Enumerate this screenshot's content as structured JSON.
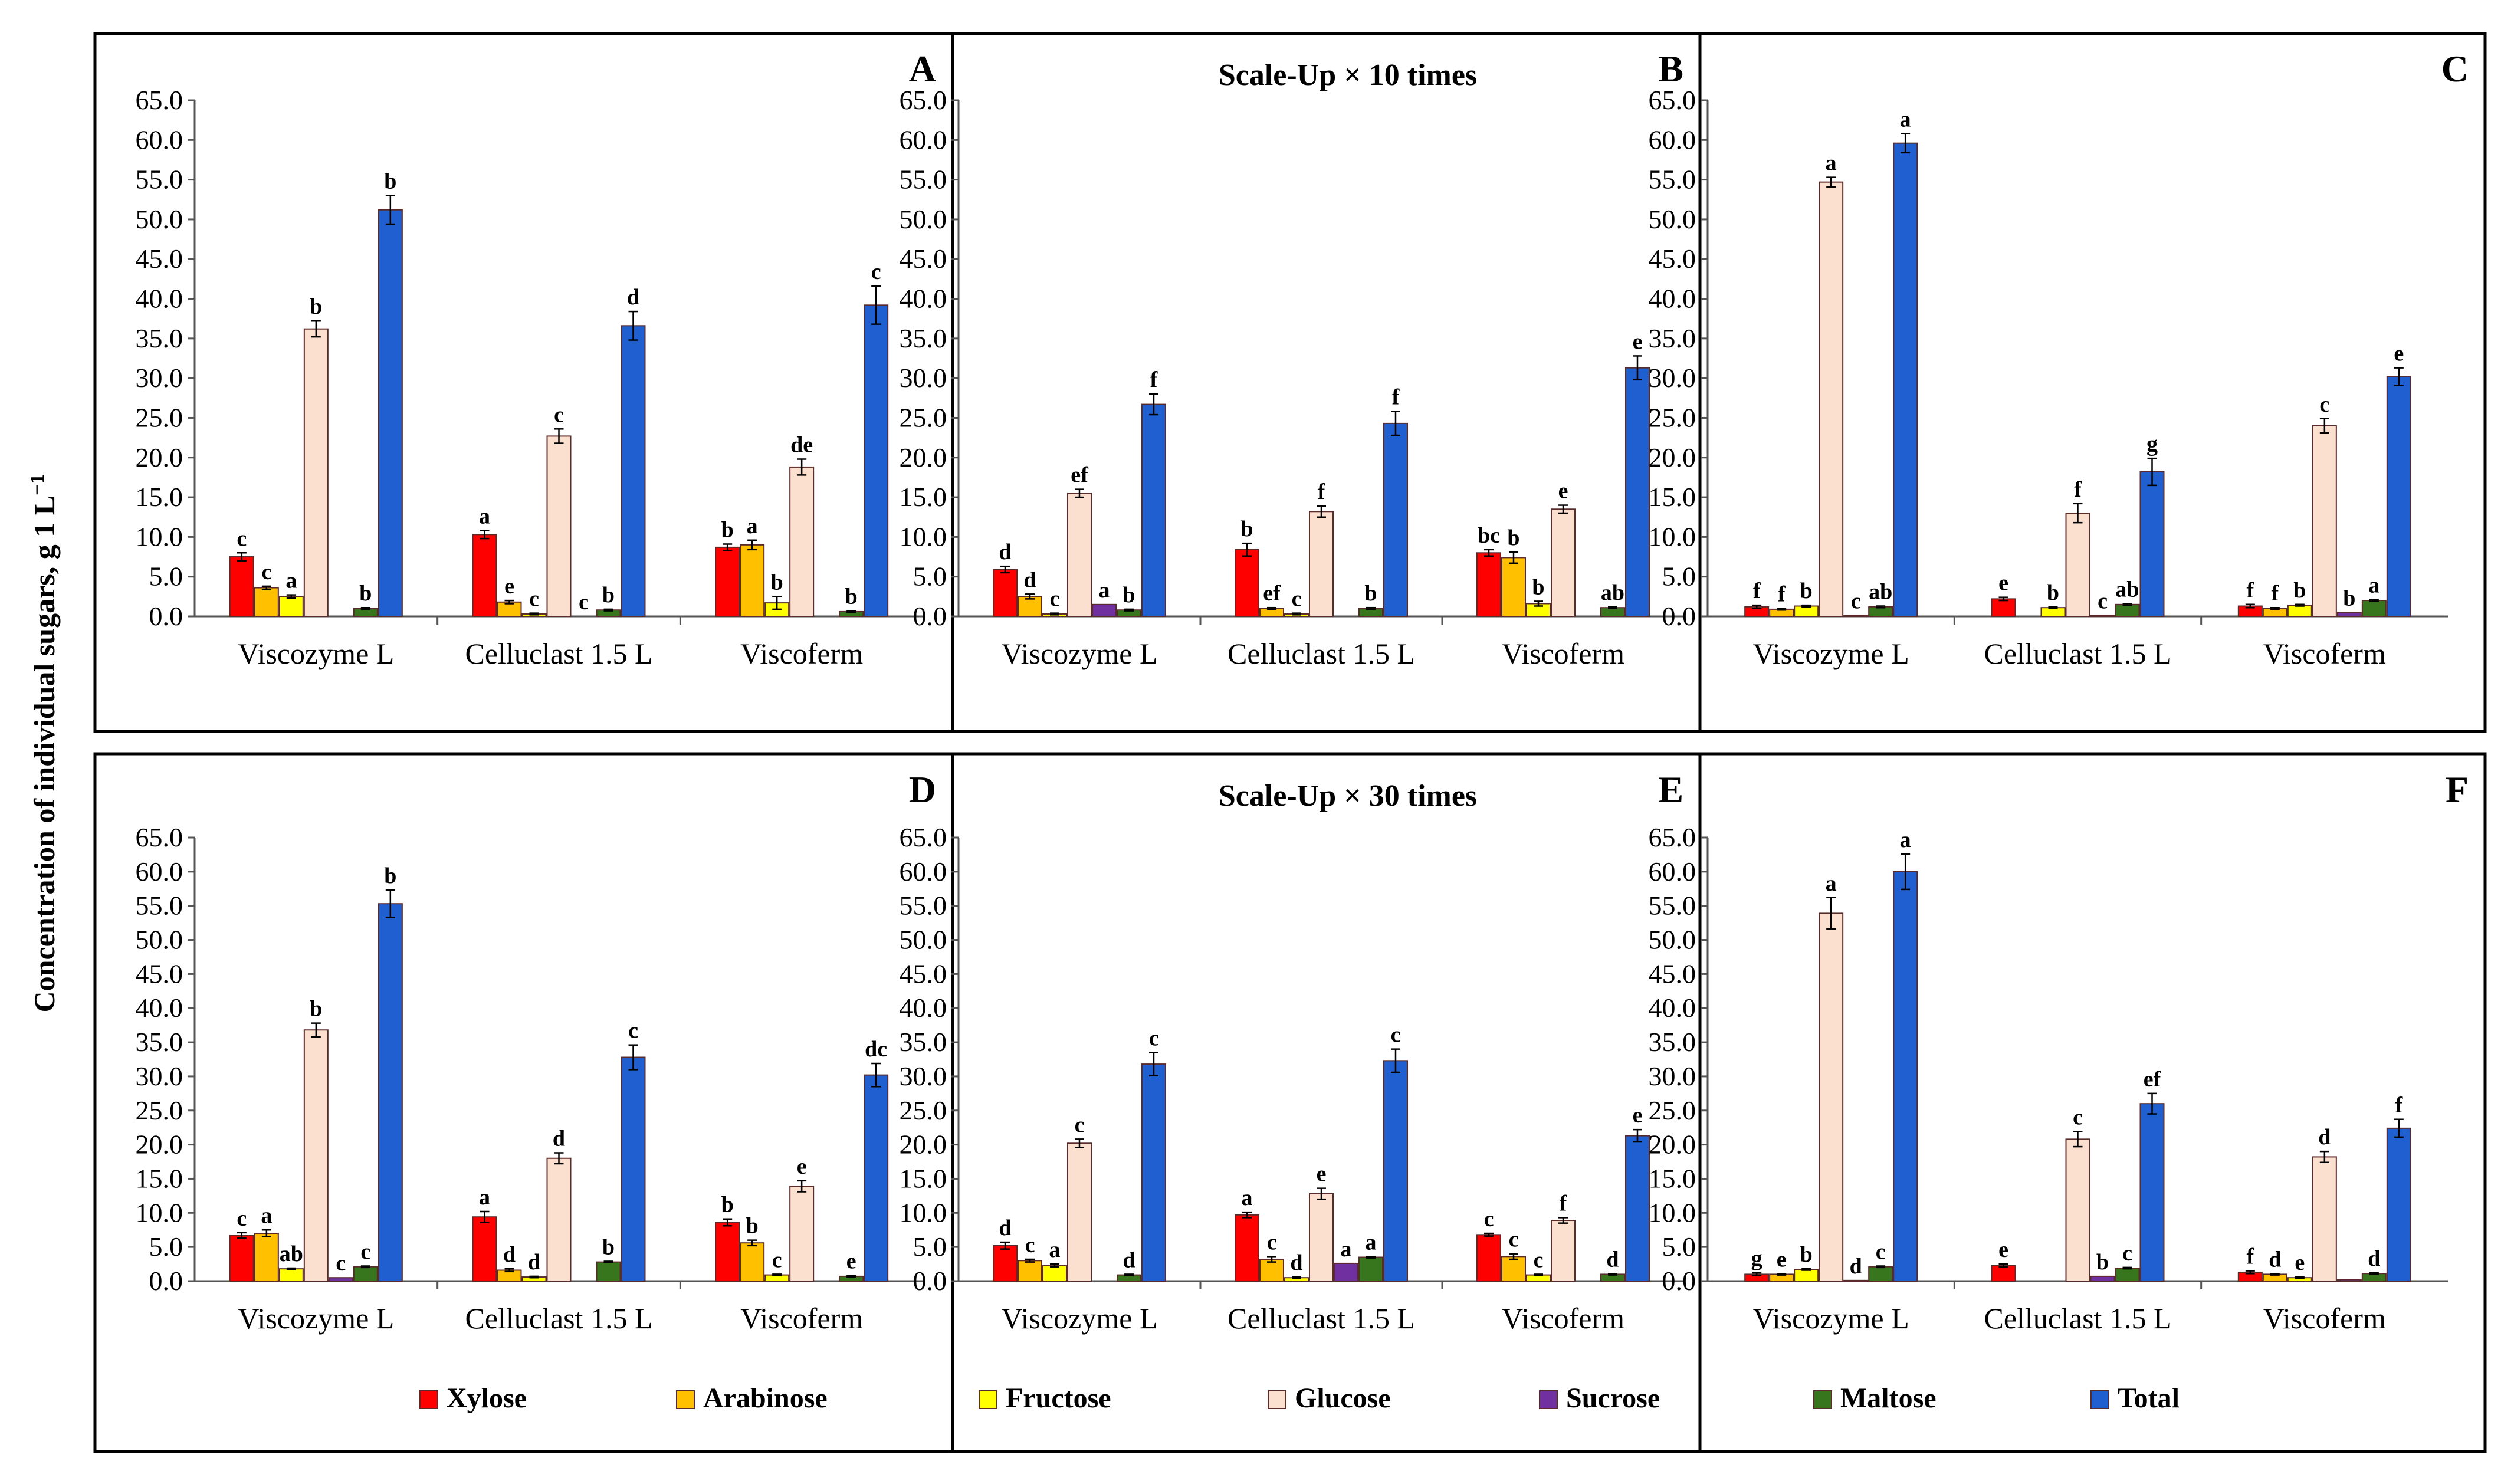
{
  "figure": {
    "ylabel": "Concentration of individual sugars, g 1 L",
    "ylabel_superscript": "−1",
    "scale_titles": [
      "Scale-Up × 10 times",
      "Scale-Up × 30 times"
    ]
  },
  "legend": [
    {
      "name": "Xylose",
      "color": "#ff0000"
    },
    {
      "name": "Arabinose",
      "color": "#ffc000"
    },
    {
      "name": "Fructose",
      "color": "#ffff00"
    },
    {
      "name": "Glucose",
      "color": "#fbe0d0"
    },
    {
      "name": "Sucrose",
      "color": "#7030a0"
    },
    {
      "name": "Maltose",
      "color": "#38761d"
    },
    {
      "name": "Total",
      "color": "#1f5fcf"
    }
  ],
  "chart_data": [
    {
      "type": "bar",
      "panel": "A",
      "categories": [
        "Viscozyme L",
        "Celluclast 1.5 L",
        "Viscoferm"
      ],
      "ylim": [
        0,
        65
      ],
      "yticks": [
        "0.0",
        "5.0",
        "10.0",
        "15.0",
        "20.0",
        "25.0",
        "30.0",
        "35.0",
        "40.0",
        "45.0",
        "50.0",
        "55.0",
        "60.0",
        "65.0"
      ],
      "series": [
        {
          "name": "Xylose",
          "values": [
            7.5,
            10.3,
            8.7
          ],
          "err": [
            0.5,
            0.5,
            0.4
          ],
          "letters": [
            "c",
            "a",
            "b"
          ]
        },
        {
          "name": "Arabinose",
          "values": [
            3.6,
            1.8,
            9.0
          ],
          "err": [
            0.2,
            0.2,
            0.6
          ],
          "letters": [
            "c",
            "e",
            "a"
          ]
        },
        {
          "name": "Fructose",
          "values": [
            2.5,
            0.3,
            1.7
          ],
          "err": [
            0.2,
            0.1,
            0.8
          ],
          "letters": [
            "a",
            "c",
            "b"
          ]
        },
        {
          "name": "Glucose",
          "values": [
            36.2,
            22.7,
            18.8
          ],
          "err": [
            1.0,
            0.9,
            1.0
          ],
          "letters": [
            "b",
            "c",
            "de"
          ]
        },
        {
          "name": "Sucrose",
          "values": [
            0,
            0,
            0
          ],
          "err": [
            0,
            0,
            0
          ],
          "letters": [
            "",
            "c",
            ""
          ]
        },
        {
          "name": "Maltose",
          "values": [
            1.0,
            0.8,
            0.6
          ],
          "err": [
            0.1,
            0.1,
            0.1
          ],
          "letters": [
            "b",
            "b",
            "b"
          ]
        },
        {
          "name": "Total",
          "values": [
            51.2,
            36.6,
            39.2
          ],
          "err": [
            1.8,
            1.8,
            2.4
          ],
          "letters": [
            "b",
            "d",
            "c"
          ]
        }
      ]
    },
    {
      "type": "bar",
      "panel": "B",
      "categories": [
        "Viscozyme L",
        "Celluclast 1.5 L",
        "Viscoferm"
      ],
      "ylim": [
        0,
        65
      ],
      "series": [
        {
          "name": "Xylose",
          "values": [
            5.9,
            8.4,
            8.0
          ],
          "err": [
            0.4,
            0.8,
            0.4
          ],
          "letters": [
            "d",
            "b",
            "bc"
          ]
        },
        {
          "name": "Arabinose",
          "values": [
            2.5,
            1.0,
            7.4
          ],
          "err": [
            0.3,
            0.1,
            0.7
          ],
          "letters": [
            "d",
            "ef",
            "b"
          ]
        },
        {
          "name": "Fructose",
          "values": [
            0.3,
            0.3,
            1.6
          ],
          "err": [
            0.1,
            0.1,
            0.3
          ],
          "letters": [
            "c",
            "c",
            "b"
          ]
        },
        {
          "name": "Glucose",
          "values": [
            15.5,
            13.2,
            13.5
          ],
          "err": [
            0.5,
            0.7,
            0.5
          ],
          "letters": [
            "ef",
            "f",
            "e"
          ]
        },
        {
          "name": "Sucrose",
          "values": [
            1.5,
            0,
            0
          ],
          "err": [
            0,
            0,
            0
          ],
          "letters": [
            "a",
            "",
            ""
          ]
        },
        {
          "name": "Maltose",
          "values": [
            0.8,
            1.0,
            1.1
          ],
          "err": [
            0.1,
            0.1,
            0.1
          ],
          "letters": [
            "b",
            "b",
            "ab"
          ]
        },
        {
          "name": "Total",
          "values": [
            26.7,
            24.3,
            31.3
          ],
          "err": [
            1.3,
            1.5,
            1.5
          ],
          "letters": [
            "f",
            "f",
            "e"
          ]
        }
      ]
    },
    {
      "type": "bar",
      "panel": "C",
      "categories": [
        "Viscozyme L",
        "Celluclast 1.5 L",
        "Viscoferm"
      ],
      "ylim": [
        0,
        65
      ],
      "series": [
        {
          "name": "Xylose",
          "values": [
            1.2,
            2.2,
            1.3
          ],
          "err": [
            0.2,
            0.2,
            0.2
          ],
          "letters": [
            "f",
            "e",
            "f"
          ]
        },
        {
          "name": "Arabinose",
          "values": [
            0.9,
            0,
            1.0
          ],
          "err": [
            0.1,
            0,
            0.1
          ],
          "letters": [
            "f",
            "",
            "f"
          ]
        },
        {
          "name": "Fructose",
          "values": [
            1.3,
            1.1,
            1.4
          ],
          "err": [
            0.1,
            0.1,
            0.1
          ],
          "letters": [
            "b",
            "b",
            "b"
          ]
        },
        {
          "name": "Glucose",
          "values": [
            54.7,
            13.0,
            24.0
          ],
          "err": [
            0.6,
            1.2,
            0.9
          ],
          "letters": [
            "a",
            "f",
            "c"
          ]
        },
        {
          "name": "Sucrose",
          "values": [
            0.1,
            0.1,
            0.5
          ],
          "err": [
            0,
            0,
            0
          ],
          "letters": [
            "c",
            "c",
            "b"
          ]
        },
        {
          "name": "Maltose",
          "values": [
            1.2,
            1.5,
            2.0
          ],
          "err": [
            0.1,
            0.1,
            0.1
          ],
          "letters": [
            "ab",
            "ab",
            "a"
          ]
        },
        {
          "name": "Total",
          "values": [
            59.6,
            18.2,
            30.2
          ],
          "err": [
            1.2,
            1.7,
            1.1
          ],
          "letters": [
            "a",
            "g",
            "e"
          ]
        }
      ]
    },
    {
      "type": "bar",
      "panel": "D",
      "categories": [
        "Viscozyme L",
        "Celluclast 1.5 L",
        "Viscoferm"
      ],
      "ylim": [
        0,
        65
      ],
      "series": [
        {
          "name": "Xylose",
          "values": [
            6.7,
            9.4,
            8.6
          ],
          "err": [
            0.4,
            0.8,
            0.5
          ],
          "letters": [
            "c",
            "a",
            "b"
          ]
        },
        {
          "name": "Arabinose",
          "values": [
            7.0,
            1.6,
            5.6
          ],
          "err": [
            0.5,
            0.2,
            0.4
          ],
          "letters": [
            "a",
            "d",
            "b"
          ]
        },
        {
          "name": "Fructose",
          "values": [
            1.8,
            0.6,
            0.9
          ],
          "err": [
            0.1,
            0.1,
            0.1
          ],
          "letters": [
            "ab",
            "d",
            "c"
          ]
        },
        {
          "name": "Glucose",
          "values": [
            36.8,
            18.0,
            13.9
          ],
          "err": [
            1.0,
            0.8,
            0.8
          ],
          "letters": [
            "b",
            "d",
            "e"
          ]
        },
        {
          "name": "Sucrose",
          "values": [
            0.5,
            0,
            0
          ],
          "err": [
            0,
            0,
            0
          ],
          "letters": [
            "c",
            "",
            ""
          ]
        },
        {
          "name": "Maltose",
          "values": [
            2.1,
            2.8,
            0.7
          ],
          "err": [
            0.1,
            0.1,
            0.1
          ],
          "letters": [
            "c",
            "b",
            "e"
          ]
        },
        {
          "name": "Total",
          "values": [
            55.3,
            32.8,
            30.2
          ],
          "err": [
            2.0,
            1.8,
            1.7
          ],
          "letters": [
            "b",
            "c",
            "dc"
          ]
        }
      ]
    },
    {
      "type": "bar",
      "panel": "E",
      "categories": [
        "Viscozyme L",
        "Celluclast 1.5 L",
        "Viscoferm"
      ],
      "ylim": [
        0,
        65
      ],
      "series": [
        {
          "name": "Xylose",
          "values": [
            5.2,
            9.7,
            6.8
          ],
          "err": [
            0.5,
            0.4,
            0.2
          ],
          "letters": [
            "d",
            "a",
            "c"
          ]
        },
        {
          "name": "Arabinose",
          "values": [
            3.0,
            3.2,
            3.6
          ],
          "err": [
            0.2,
            0.4,
            0.4
          ],
          "letters": [
            "c",
            "c",
            "c"
          ]
        },
        {
          "name": "Fructose",
          "values": [
            2.3,
            0.5,
            0.9
          ],
          "err": [
            0.2,
            0.1,
            0.1
          ],
          "letters": [
            "a",
            "d",
            "c"
          ]
        },
        {
          "name": "Glucose",
          "values": [
            20.2,
            12.8,
            8.9
          ],
          "err": [
            0.6,
            0.8,
            0.4
          ],
          "letters": [
            "c",
            "e",
            "f"
          ]
        },
        {
          "name": "Sucrose",
          "values": [
            0,
            2.6,
            0
          ],
          "err": [
            0,
            0,
            0
          ],
          "letters": [
            "",
            "a",
            ""
          ]
        },
        {
          "name": "Maltose",
          "values": [
            0.9,
            3.5,
            1.0
          ],
          "err": [
            0.1,
            0.1,
            0.1
          ],
          "letters": [
            "d",
            "a",
            "d"
          ]
        },
        {
          "name": "Total",
          "values": [
            31.8,
            32.3,
            21.3
          ],
          "err": [
            1.7,
            1.7,
            0.9
          ],
          "letters": [
            "c",
            "c",
            "e"
          ]
        }
      ]
    },
    {
      "type": "bar",
      "panel": "F",
      "categories": [
        "Viscozyme L",
        "Celluclast 1.5 L",
        "Viscoferm"
      ],
      "ylim": [
        0,
        65
      ],
      "series": [
        {
          "name": "Xylose",
          "values": [
            1.0,
            2.3,
            1.3
          ],
          "err": [
            0.2,
            0.2,
            0.2
          ],
          "letters": [
            "g",
            "e",
            "f"
          ]
        },
        {
          "name": "Arabinose",
          "values": [
            1.0,
            0,
            1.0
          ],
          "err": [
            0.1,
            0,
            0.1
          ],
          "letters": [
            "e",
            "",
            "d"
          ]
        },
        {
          "name": "Fructose",
          "values": [
            1.7,
            0,
            0.5
          ],
          "err": [
            0.1,
            0,
            0.1
          ],
          "letters": [
            "b",
            "",
            "e"
          ]
        },
        {
          "name": "Glucose",
          "values": [
            53.9,
            20.8,
            18.2
          ],
          "err": [
            2.3,
            1.1,
            0.8
          ],
          "letters": [
            "a",
            "c",
            "d"
          ]
        },
        {
          "name": "Sucrose",
          "values": [
            0.1,
            0.7,
            0.2
          ],
          "err": [
            0,
            0,
            0
          ],
          "letters": [
            "d",
            "b",
            ""
          ]
        },
        {
          "name": "Maltose",
          "values": [
            2.1,
            1.9,
            1.1
          ],
          "err": [
            0.1,
            0.1,
            0.1
          ],
          "letters": [
            "c",
            "c",
            "d"
          ]
        },
        {
          "name": "Total",
          "values": [
            60.0,
            26.0,
            22.4
          ],
          "err": [
            2.6,
            1.5,
            1.3
          ],
          "letters": [
            "a",
            "ef",
            "f"
          ]
        }
      ]
    }
  ]
}
